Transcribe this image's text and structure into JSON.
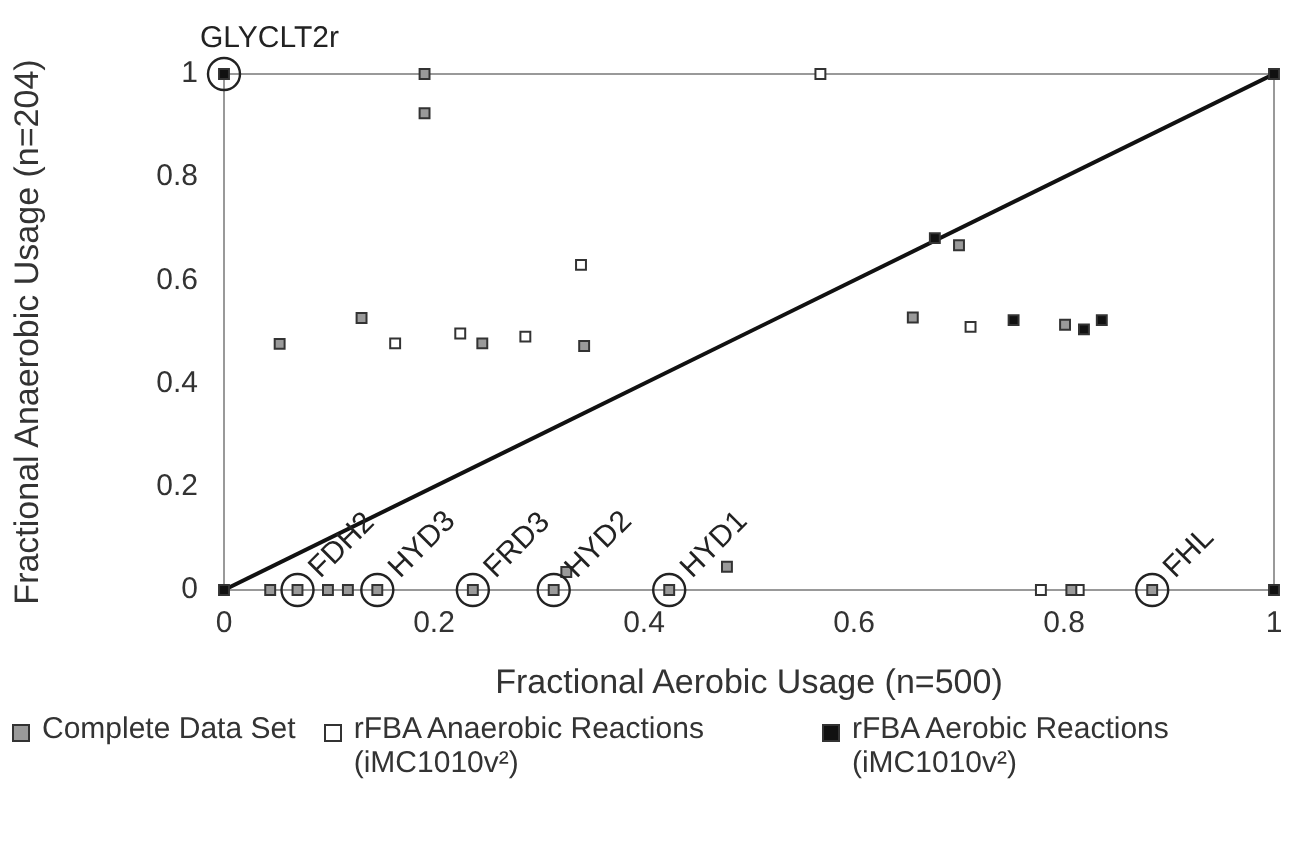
{
  "chart_data": {
    "type": "scatter",
    "xlabel": "Fractional Aerobic Usage (n=500)",
    "ylabel": "Fractional Anaerobic Usage (n=204)",
    "xlim": [
      0,
      1
    ],
    "ylim": [
      0,
      1
    ],
    "xticks": [
      0,
      0.2,
      0.4,
      0.6,
      0.8,
      1
    ],
    "yticks": [
      0,
      0.2,
      0.4,
      0.6,
      0.8,
      1
    ],
    "grid": false,
    "legend": "bottom",
    "marker": "square",
    "series": [
      {
        "name": "Complete Data Set",
        "color": "#9a9a9a",
        "x": [
          0.053,
          0.131,
          0.191,
          0.191,
          0.246,
          0.343,
          0.044,
          0.099,
          0.118,
          0.326,
          0.479,
          0.656,
          0.7,
          0.801,
          0.807,
          0.07,
          0.146,
          0.237,
          0.314,
          0.424,
          0.884
        ],
        "values": [
          0.477,
          0.527,
          1.0,
          0.924,
          0.478,
          0.473,
          0,
          0,
          0,
          0.035,
          0.045,
          0.528,
          0.668,
          0.514,
          0,
          0,
          0,
          0,
          0,
          0,
          0
        ]
      },
      {
        "name": "rFBA Anaerobic Reactions (iMC1010v²)",
        "color": "#ffffff",
        "x": [
          0.163,
          0.225,
          0.287,
          0.34,
          0.568,
          0.711,
          0.778,
          0.814
        ],
        "values": [
          0.478,
          0.497,
          0.491,
          0.63,
          1.0,
          0.51,
          0,
          0
        ]
      },
      {
        "name": "rFBA Aerobic Reactions (iMC1010v²)",
        "color": "#111111",
        "x": [
          0,
          0,
          0.677,
          0.752,
          0.819,
          0.836,
          1,
          1
        ],
        "values": [
          0,
          1,
          0.682,
          0.523,
          0.505,
          0.523,
          1,
          0
        ]
      },
      {
        "type": "line",
        "color": "#111111",
        "x": [
          0,
          1
        ],
        "values": [
          0,
          1
        ]
      }
    ],
    "annotations": [
      {
        "text": "GLYCLT2r",
        "x": 0,
        "y": 1
      },
      {
        "text": "FDH2",
        "x": 0.07,
        "y": 0
      },
      {
        "text": "HYD3",
        "x": 0.146,
        "y": 0
      },
      {
        "text": "FRD3",
        "x": 0.237,
        "y": 0
      },
      {
        "text": "HYD2",
        "x": 0.314,
        "y": 0
      },
      {
        "text": "HYD1",
        "x": 0.424,
        "y": 0
      },
      {
        "text": "FHL",
        "x": 0.884,
        "y": 0
      }
    ]
  }
}
